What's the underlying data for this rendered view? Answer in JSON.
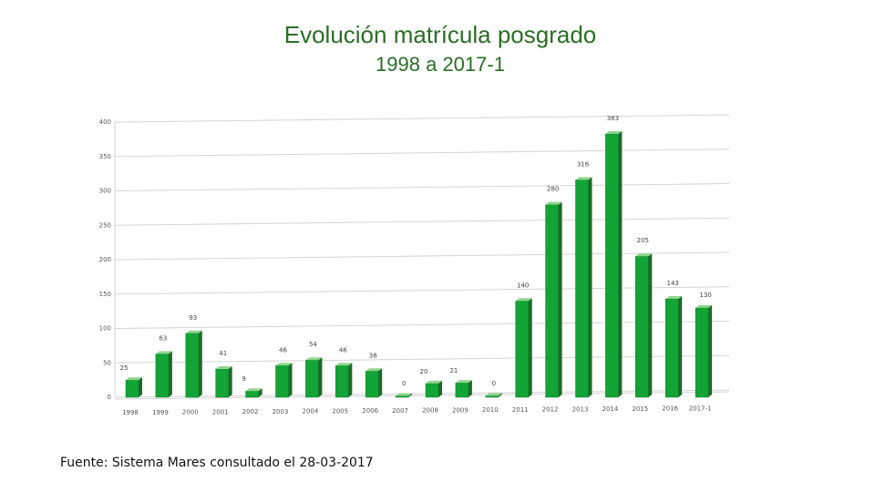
{
  "title": "Evolución matrícula posgrado",
  "subtitle": "1998 a 2017-1",
  "source": "Fuente: Sistema Mares consultado el 28-03-2017",
  "colors": {
    "bar_front": "#12a436",
    "bar_top": "#8fd68c",
    "bar_side": "#1b6b27",
    "grid": "#d4d4d4",
    "title": "#2a6e24"
  },
  "chart_data": {
    "type": "bar",
    "title": "Evolución matrícula posgrado 1998 a 2017-1",
    "xlabel": "",
    "ylabel": "",
    "ylim": [
      0,
      400
    ],
    "yticks": [
      0,
      50,
      100,
      150,
      200,
      250,
      300,
      350,
      400
    ],
    "grid": true,
    "categories": [
      "1998",
      "1999",
      "2000",
      "2001",
      "2002",
      "2003",
      "2004",
      "2005",
      "2006",
      "2007",
      "2008",
      "2009",
      "2010",
      "2011",
      "2012",
      "2013",
      "2014",
      "2015",
      "2016",
      "2017-1"
    ],
    "values": [
      25,
      63,
      93,
      41,
      9,
      46,
      54,
      46,
      38,
      0,
      20,
      21,
      0,
      140,
      280,
      316,
      383,
      205,
      143,
      130
    ]
  }
}
